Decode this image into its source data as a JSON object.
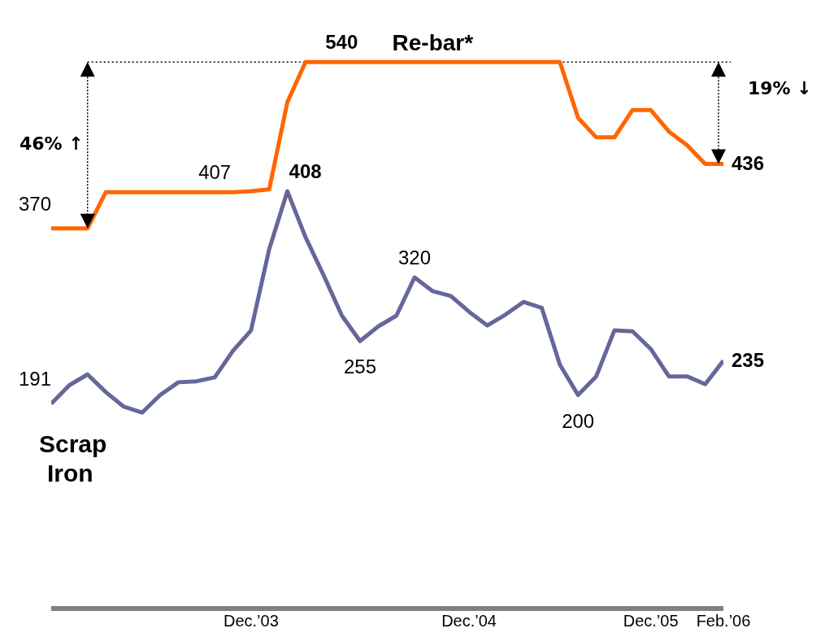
{
  "chart_data": {
    "type": "line",
    "categories": [
      null,
      null,
      null,
      null,
      null,
      null,
      null,
      null,
      null,
      null,
      null,
      "Dec.’03",
      null,
      null,
      null,
      null,
      null,
      null,
      null,
      null,
      null,
      null,
      null,
      "Dec.’04",
      null,
      null,
      null,
      null,
      null,
      null,
      null,
      null,
      null,
      "Dec.’05",
      null,
      null,
      null,
      "Feb.’06"
    ],
    "series": [
      {
        "name": "Re-bar*",
        "color": "#ff6600",
        "values": [
          370,
          370,
          370,
          407,
          407,
          407,
          407,
          407,
          407,
          407,
          407,
          408,
          410,
          499,
          540,
          540,
          540,
          540,
          540,
          540,
          540,
          540,
          540,
          540,
          540,
          540,
          540,
          540,
          540,
          483,
          463,
          463,
          491,
          491,
          469,
          455,
          436,
          436
        ],
        "value_labels": [
          "370",
          null,
          null,
          null,
          null,
          null,
          null,
          null,
          null,
          "407",
          null,
          null,
          null,
          null,
          null,
          "540",
          null,
          null,
          null,
          null,
          null,
          null,
          null,
          null,
          null,
          null,
          null,
          null,
          null,
          null,
          null,
          null,
          null,
          null,
          null,
          null,
          null,
          "436"
        ]
      },
      {
        "name": "Scrap Iron",
        "color": "#65679b",
        "values": [
          191,
          210,
          221,
          203,
          188,
          182,
          200,
          213,
          214,
          218,
          245,
          266,
          349,
          408,
          361,
          322,
          281,
          255,
          270,
          281,
          320,
          306,
          301,
          285,
          271,
          282,
          295,
          289,
          231,
          200,
          219,
          266,
          265,
          247,
          219,
          219,
          211,
          235
        ],
        "value_labels": [
          "191",
          null,
          null,
          null,
          null,
          null,
          null,
          null,
          null,
          null,
          null,
          null,
          null,
          "408",
          null,
          null,
          null,
          "255",
          null,
          null,
          "320",
          null,
          null,
          null,
          null,
          null,
          null,
          null,
          null,
          "200",
          null,
          null,
          null,
          null,
          null,
          null,
          null,
          "235"
        ]
      }
    ],
    "tick_labels": "x",
    "legend": false,
    "grid": false,
    "marker": "none",
    "line_style": "solid",
    "ref_lines": [
      {
        "axis": "y",
        "value": 540,
        "color": "#000000",
        "line_style": "dotted"
      }
    ],
    "annotations": [
      "46% ↑",
      "19% ↓"
    ]
  }
}
